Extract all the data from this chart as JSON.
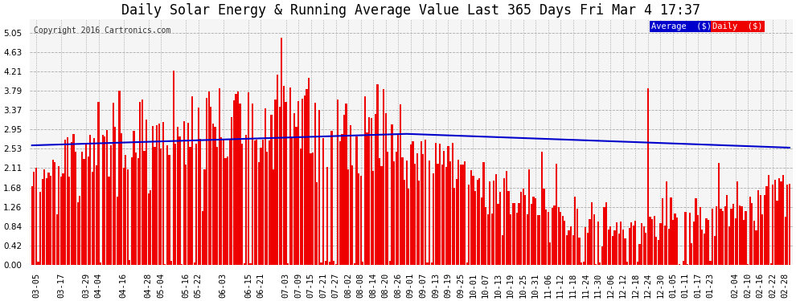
{
  "title": "Daily Solar Energy & Running Average Value Last 365 Days Fri Mar 4 17:37",
  "copyright_text": "Copyright 2016 Cartronics.com",
  "yticks": [
    0.0,
    0.42,
    0.84,
    1.26,
    1.68,
    2.11,
    2.53,
    2.95,
    3.37,
    3.79,
    4.21,
    4.63,
    5.05
  ],
  "ylim": [
    0,
    5.35
  ],
  "bar_color": "#ee0000",
  "avg_color": "#0000cc",
  "bg_color": "#ffffff",
  "plot_bg_color": "#f5f5f5",
  "grid_color": "#aaaaaa",
  "legend_avg_bg": "#0000cc",
  "legend_daily_bg": "#ee0000",
  "legend_text_color": "#ffffff",
  "title_fontsize": 12,
  "tick_fontsize": 7.5,
  "n_days": 365,
  "x_tick_labels": [
    "03-05",
    "03-17",
    "03-29",
    "04-04",
    "04-16",
    "04-28",
    "05-04",
    "05-16",
    "05-22",
    "06-03",
    "06-15",
    "06-21",
    "07-03",
    "07-09",
    "07-15",
    "07-21",
    "07-27",
    "08-02",
    "08-08",
    "08-14",
    "08-20",
    "08-26",
    "09-01",
    "09-07",
    "09-13",
    "09-19",
    "09-25",
    "10-01",
    "10-07",
    "10-13",
    "10-19",
    "10-25",
    "10-31",
    "11-06",
    "11-12",
    "11-18",
    "11-24",
    "11-30",
    "12-06",
    "12-12",
    "12-18",
    "12-24",
    "12-30",
    "01-05",
    "01-11",
    "01-17",
    "01-23",
    "02-04",
    "02-10",
    "02-16",
    "02-22",
    "02-28"
  ],
  "x_tick_positions": [
    2,
    14,
    26,
    32,
    44,
    56,
    62,
    74,
    80,
    92,
    104,
    110,
    122,
    128,
    134,
    140,
    146,
    152,
    158,
    164,
    170,
    176,
    182,
    188,
    194,
    200,
    206,
    212,
    218,
    224,
    230,
    236,
    242,
    248,
    254,
    260,
    266,
    272,
    278,
    284,
    290,
    296,
    302,
    308,
    314,
    320,
    326,
    338,
    344,
    350,
    356,
    362
  ]
}
